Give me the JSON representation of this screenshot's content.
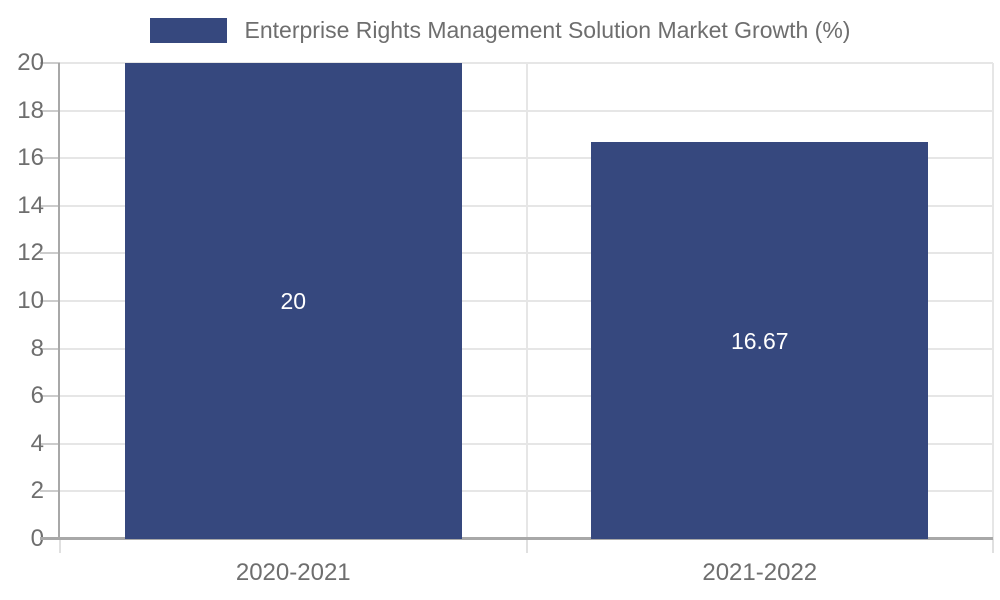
{
  "legend": {
    "label": "Enterprise Rights Management Solution Market Growth (%)"
  },
  "colors": {
    "bar": "#36487e",
    "grid": "#e6e6e6",
    "axis": "#a8a8a8",
    "tick": "#cccccc",
    "text": "#6e6e6e",
    "bar_label_text": "#ffffff",
    "background": "#ffffff"
  },
  "chart_data": {
    "type": "bar",
    "title": "Enterprise Rights Management Solution Market Growth (%)",
    "categories": [
      "2020-2021",
      "2021-2022"
    ],
    "values": [
      20,
      16.67
    ],
    "value_labels": [
      "20",
      "16.67"
    ],
    "xlabel": "",
    "ylabel": "",
    "ylim": [
      0,
      20
    ],
    "yticks": [
      0,
      2,
      4,
      6,
      8,
      10,
      12,
      14,
      16,
      18,
      20
    ],
    "grid": true,
    "legend_position": "top",
    "bar_color": "#36487e",
    "value_label_color": "#ffffff"
  }
}
